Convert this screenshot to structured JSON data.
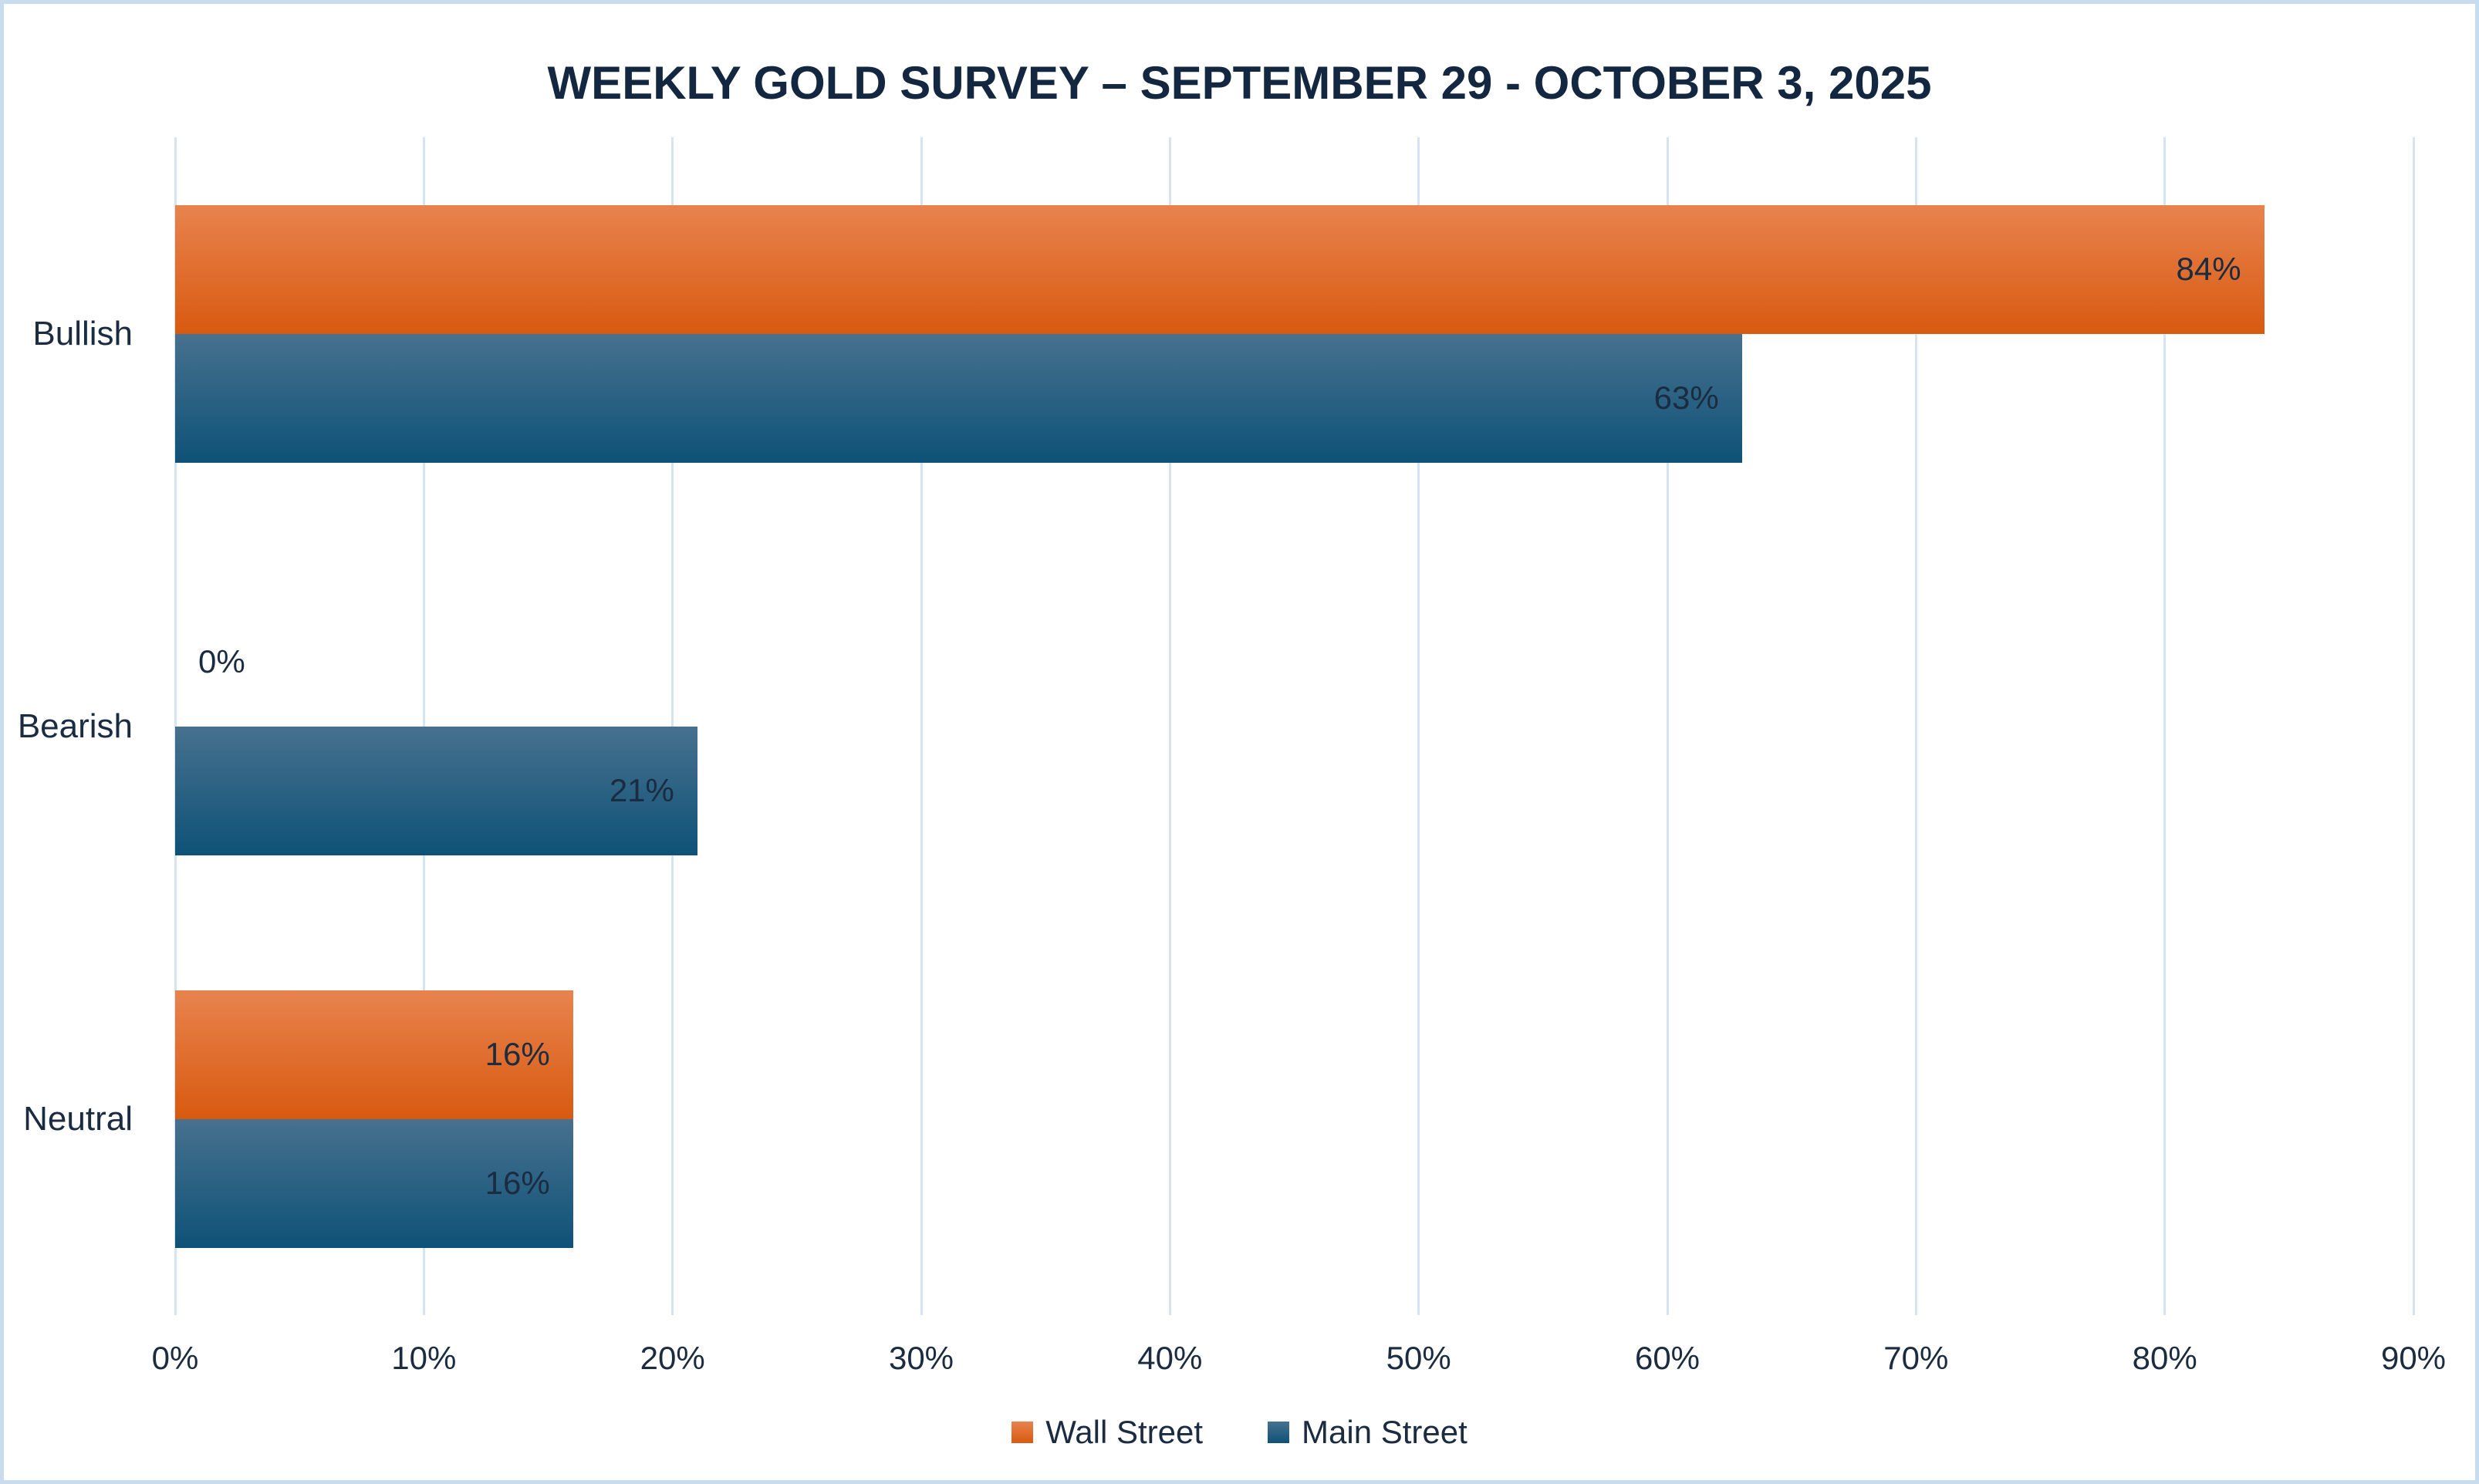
{
  "chart_data": {
    "type": "bar",
    "orientation": "horizontal",
    "title": "WEEKLY GOLD SURVEY – SEPTEMBER 29 - OCTOBER 3, 2025",
    "categories": [
      "Bullish",
      "Bearish",
      "Neutral"
    ],
    "series": [
      {
        "name": "Wall Street",
        "values": [
          84,
          0,
          16
        ],
        "labels": [
          "84%",
          "0%",
          "16%"
        ],
        "color_top": "#E8834E",
        "color_bottom": "#D85A10"
      },
      {
        "name": "Main Street",
        "values": [
          63,
          21,
          16
        ],
        "labels": [
          "63%",
          "21%",
          "16%"
        ],
        "color_top": "#47718F",
        "color_bottom": "#0E5277"
      }
    ],
    "xlim": [
      0,
      90
    ],
    "x_ticks": [
      "0%",
      "10%",
      "20%",
      "30%",
      "40%",
      "50%",
      "60%",
      "70%",
      "80%",
      "90%"
    ],
    "grid": true,
    "legend_position": "bottom",
    "data_label_position": "inside-end, outside-end when value is 0"
  },
  "style": {
    "background": "#FFFFFF",
    "frame_border_color": "#C9DCEE",
    "gridline_color": "#D6E3F1",
    "text_color": "#1B2B40",
    "title_color": "#132840"
  }
}
